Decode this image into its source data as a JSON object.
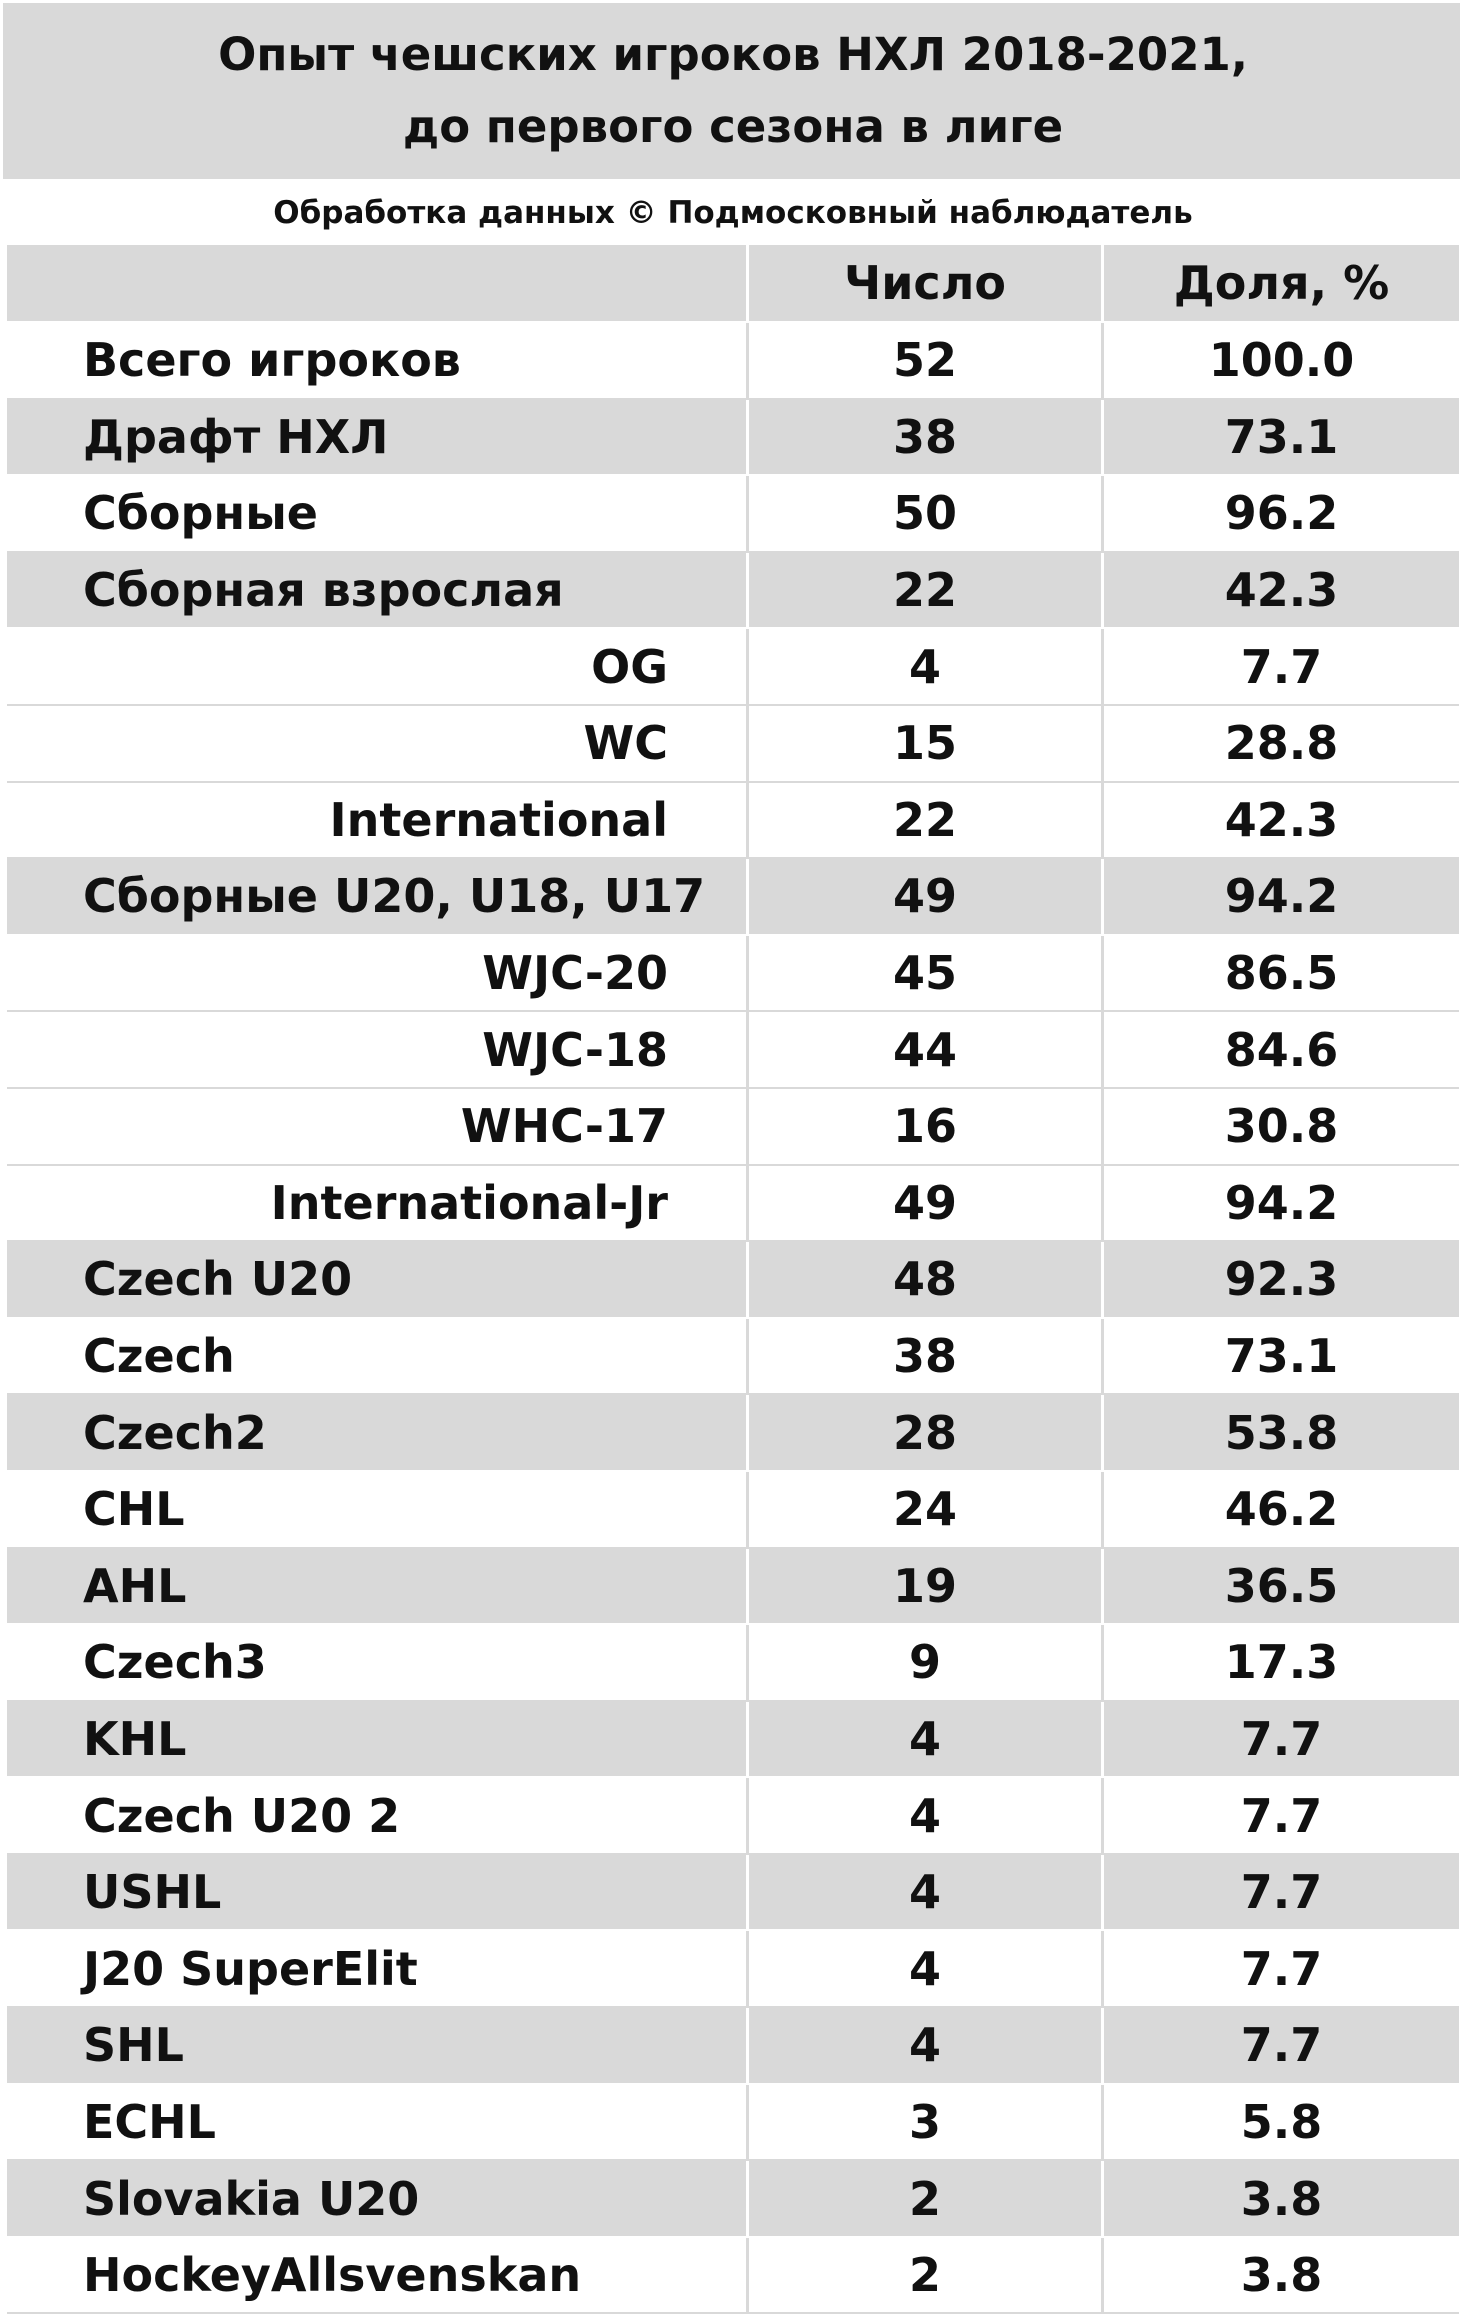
{
  "title": {
    "line1": "Опыт чешских игроков НХЛ 2018-2021,",
    "line2": "до первого сезона в лиге"
  },
  "source": "Обработка данных © Подмосковный наблюдатель",
  "columns": {
    "label": "",
    "count": "Число",
    "share": "Доля, %"
  },
  "rows": [
    {
      "label": "Всего игроков",
      "count": "52",
      "share": "100.0",
      "align": "left",
      "shaded": false
    },
    {
      "label": "Драфт НХЛ",
      "count": "38",
      "share": "73.1",
      "align": "left",
      "shaded": true
    },
    {
      "label": "Сборные",
      "count": "50",
      "share": "96.2",
      "align": "left",
      "shaded": false
    },
    {
      "label": "Сборная взрослая",
      "count": "22",
      "share": "42.3",
      "align": "left",
      "shaded": true
    },
    {
      "label": "OG",
      "count": "4",
      "share": "7.7",
      "align": "right",
      "shaded": false
    },
    {
      "label": "WC",
      "count": "15",
      "share": "28.8",
      "align": "right",
      "shaded": false
    },
    {
      "label": "International",
      "count": "22",
      "share": "42.3",
      "align": "right",
      "shaded": false
    },
    {
      "label": "Сборные U20, U18, U17",
      "count": "49",
      "share": "94.2",
      "align": "left",
      "shaded": true
    },
    {
      "label": "WJC-20",
      "count": "45",
      "share": "86.5",
      "align": "right",
      "shaded": false
    },
    {
      "label": "WJC-18",
      "count": "44",
      "share": "84.6",
      "align": "right",
      "shaded": false
    },
    {
      "label": "WHC-17",
      "count": "16",
      "share": "30.8",
      "align": "right",
      "shaded": false
    },
    {
      "label": "International-Jr",
      "count": "49",
      "share": "94.2",
      "align": "right",
      "shaded": false
    },
    {
      "label": "Czech U20",
      "count": "48",
      "share": "92.3",
      "align": "left",
      "shaded": true
    },
    {
      "label": "Czech",
      "count": "38",
      "share": "73.1",
      "align": "left",
      "shaded": false
    },
    {
      "label": "Czech2",
      "count": "28",
      "share": "53.8",
      "align": "left",
      "shaded": true
    },
    {
      "label": "CHL",
      "count": "24",
      "share": "46.2",
      "align": "left",
      "shaded": false
    },
    {
      "label": "AHL",
      "count": "19",
      "share": "36.5",
      "align": "left",
      "shaded": true
    },
    {
      "label": "Czech3",
      "count": "9",
      "share": "17.3",
      "align": "left",
      "shaded": false
    },
    {
      "label": "KHL",
      "count": "4",
      "share": "7.7",
      "align": "left",
      "shaded": true
    },
    {
      "label": "Czech U20 2",
      "count": "4",
      "share": "7.7",
      "align": "left",
      "shaded": false
    },
    {
      "label": "USHL",
      "count": "4",
      "share": "7.7",
      "align": "left",
      "shaded": true
    },
    {
      "label": "J20 SuperElit",
      "count": "4",
      "share": "7.7",
      "align": "left",
      "shaded": false
    },
    {
      "label": "SHL",
      "count": "4",
      "share": "7.7",
      "align": "left",
      "shaded": true
    },
    {
      "label": "ECHL",
      "count": "3",
      "share": "5.8",
      "align": "left",
      "shaded": false
    },
    {
      "label": "Slovakia U20",
      "count": "2",
      "share": "3.8",
      "align": "left",
      "shaded": true
    },
    {
      "label": "HockeyAllsvenskan",
      "count": "2",
      "share": "3.8",
      "align": "left",
      "shaded": false
    }
  ]
}
